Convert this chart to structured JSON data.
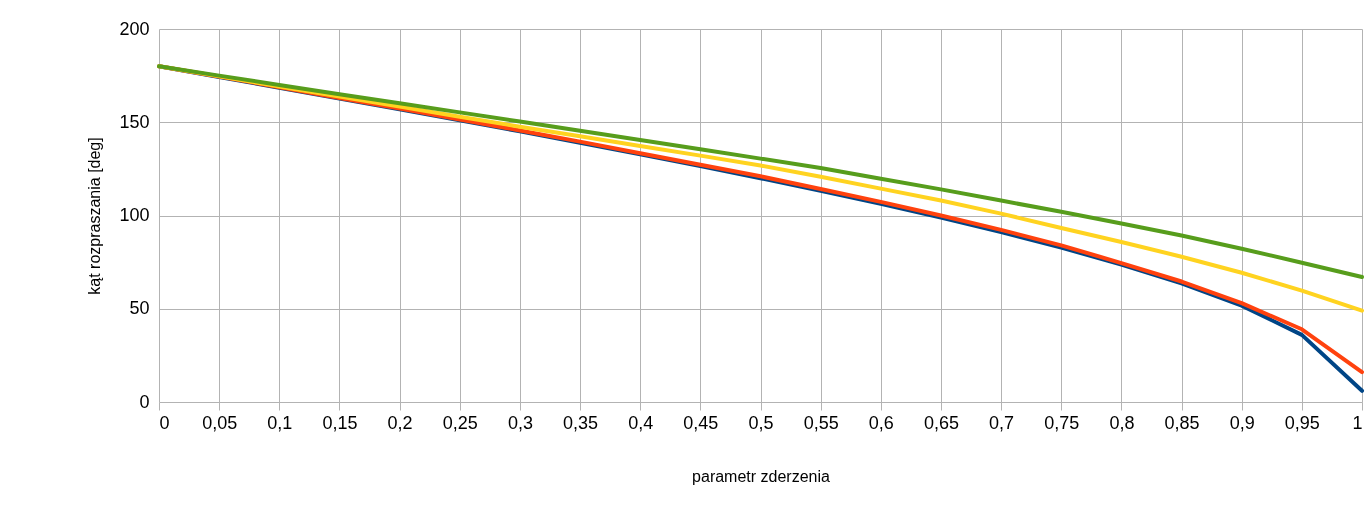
{
  "chart_data": {
    "type": "line",
    "xlabel": "parametr zderzenia",
    "ylabel": "kąt rozpraszania [deg]",
    "categories": [
      "0",
      "0,05",
      "0,1",
      "0,15",
      "0,2",
      "0,25",
      "0,3",
      "0,35",
      "0,4",
      "0,45",
      "0,5",
      "0,55",
      "0,6",
      "0,65",
      "0,7",
      "0,75",
      "0,8",
      "0,85",
      "0,9",
      "0,95",
      "1"
    ],
    "series": [
      {
        "color": "#004586",
        "values": [
          180,
          174.3,
          168.5,
          162.7,
          156.9,
          151,
          145.1,
          139,
          132.8,
          126.5,
          120,
          113.3,
          106.3,
          98.9,
          91.1,
          82.8,
          73.7,
          63.6,
          51.7,
          36,
          6
        ]
      },
      {
        "color": "#ff420e",
        "values": [
          180,
          174.5,
          168.8,
          163,
          157.3,
          151.5,
          145.6,
          139.6,
          133.4,
          127.2,
          121,
          114.2,
          107.3,
          100,
          92.3,
          84,
          74.5,
          64.6,
          53,
          39,
          16
        ]
      },
      {
        "color": "#ffd320",
        "values": [
          180,
          174.6,
          169.2,
          163.8,
          158.4,
          153,
          147.6,
          142.5,
          137.3,
          132.1,
          126.8,
          120.8,
          114.4,
          108,
          101,
          93.3,
          85.8,
          77.9,
          69.3,
          59.7,
          49
        ]
      },
      {
        "color": "#579d1c",
        "values": [
          180,
          175,
          170,
          165,
          160.2,
          155.3,
          150.4,
          145.4,
          140.5,
          135.5,
          130.5,
          125.5,
          119.7,
          114,
          108,
          102,
          95.7,
          89.3,
          82.2,
          74.7,
          67
        ]
      }
    ],
    "ylim": [
      0,
      200
    ],
    "yticks": [
      0,
      50,
      100,
      150,
      200
    ],
    "grid": true,
    "marker": "none",
    "line_style": "solid"
  }
}
